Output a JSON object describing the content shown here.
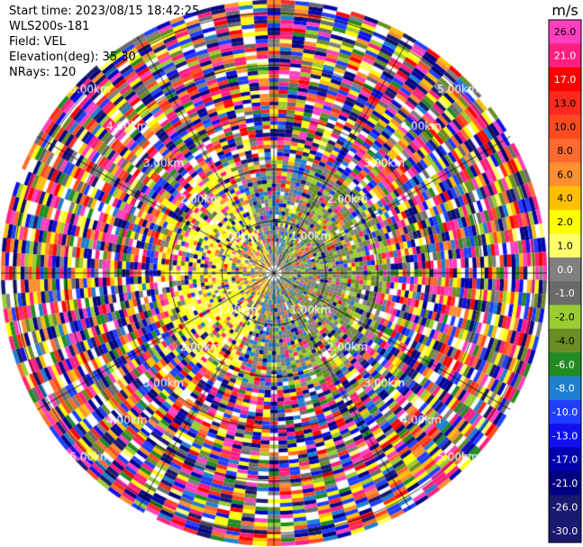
{
  "header": {
    "start_time": "Start time: 2023/08/15 18:42:25",
    "instrument": "WLS200s-181",
    "field": "Field: VEL",
    "elevation": "Elevation(deg): 35.30",
    "nrays": "NRays: 120"
  },
  "chart_data": {
    "type": "heatmap",
    "projection": "polar-ppi",
    "field": "VEL",
    "units": "m/s",
    "n_rays": 120,
    "range_rings_km": [
      1.0,
      2.0,
      3.0,
      4.0,
      5.0
    ],
    "ring_labels": [
      "1.00km",
      "2.00km",
      "3.00km",
      "4.00km",
      "5.00km"
    ],
    "max_range_km": 5.25,
    "spoke_angles_deg": [
      0,
      30,
      60,
      90,
      120,
      150,
      180,
      210,
      240,
      270,
      300,
      330
    ],
    "velocity_pattern": {
      "approaching_sector_deg": [
        30,
        150
      ],
      "receding_sector_deg": [
        210,
        330
      ],
      "coherent_range_km": [
        0.0,
        2.0
      ],
      "noisy_beyond_km": 2.2
    },
    "colorbar": {
      "label": "m/s",
      "ticks": [
        "26.0",
        "21.0",
        "17.0",
        "13.0",
        "10.0",
        "8.0",
        "6.0",
        "4.0",
        "2.0",
        "1.0",
        "0.0",
        "-1.0",
        "-2.0",
        "-4.0",
        "-6.0",
        "-8.0",
        "-10.0",
        "-13.0",
        "-17.0",
        "-21.0",
        "-26.0",
        "-30.0"
      ],
      "colors": [
        "#ff3fbf",
        "#ff1f7f",
        "#ff0000",
        "#ff2a1f",
        "#ff4a1f",
        "#ff6a2f",
        "#ff8f2f",
        "#ffbf00",
        "#ffff00",
        "#ffff6a",
        "#808080",
        "#6a6a6a",
        "#9acd32",
        "#6b8e23",
        "#228b22",
        "#1e7fcf",
        "#1f3fff",
        "#1010ee",
        "#0000b0",
        "#000080",
        "#191970",
        "#191970"
      ]
    }
  }
}
